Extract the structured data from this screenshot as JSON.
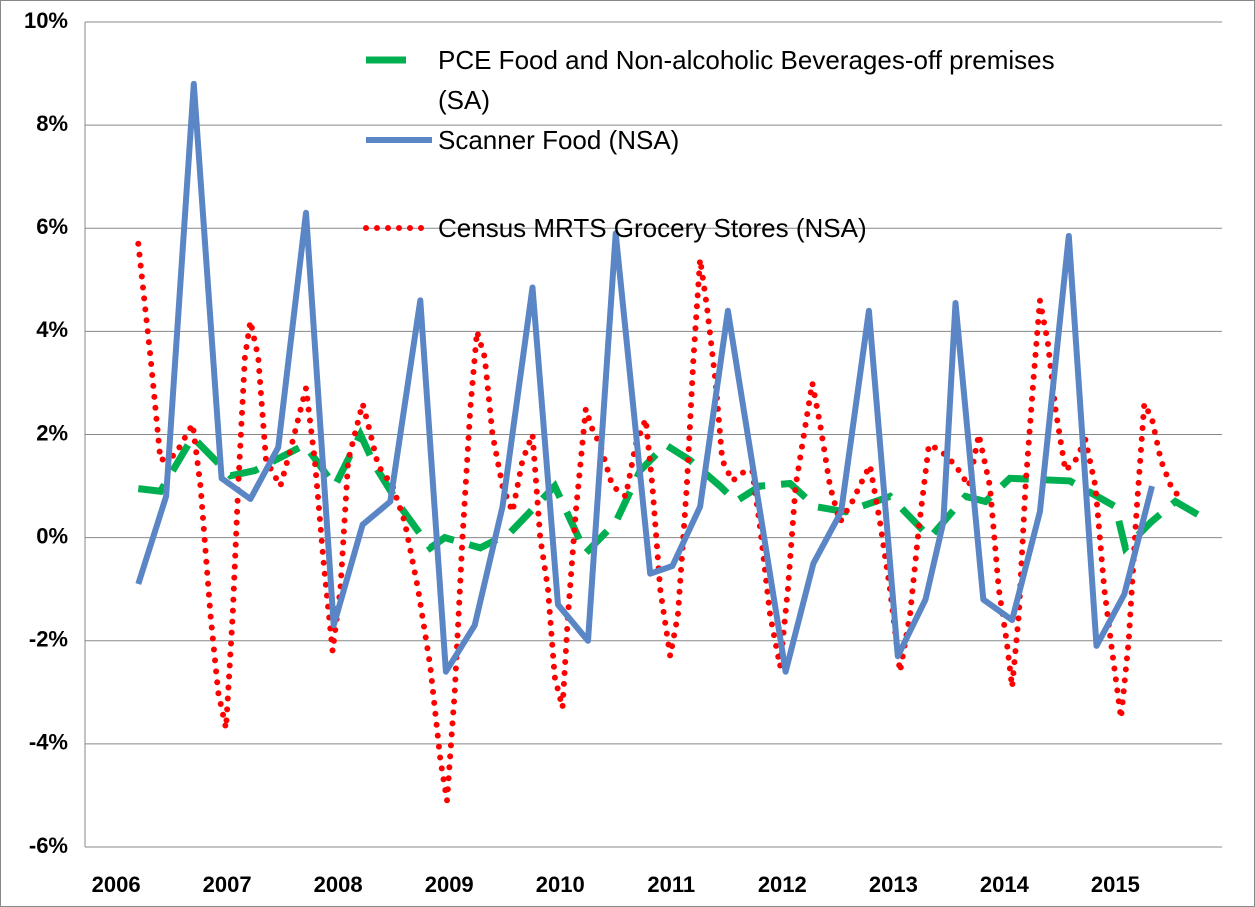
{
  "chart_data": {
    "type": "line",
    "xlim": [
      2005.72,
      2015.96
    ],
    "xticks": [
      2006,
      2007,
      2008,
      2009,
      2010,
      2011,
      2012,
      2013,
      2014,
      2015
    ],
    "ylim": [
      -6,
      10
    ],
    "yticks": [
      {
        "value": -6,
        "label": "-6%"
      },
      {
        "value": -4,
        "label": "-4%"
      },
      {
        "value": -2,
        "label": "-2%"
      },
      {
        "value": 0,
        "label": "0%"
      },
      {
        "value": 2,
        "label": "2%"
      },
      {
        "value": 4,
        "label": "4%"
      },
      {
        "value": 6,
        "label": "6%"
      },
      {
        "value": 8,
        "label": "8%"
      },
      {
        "value": 10,
        "label": "10%"
      }
    ],
    "grid": true,
    "legend": "top",
    "series": [
      {
        "name": "PCE Food and Non-alcoholic Beverages-off premises (SA)",
        "color": "#00b050",
        "style": "dashed",
        "x": [
          2006.2,
          2006.4,
          2006.69,
          2007.03,
          2007.25,
          2007.43,
          2007.7,
          2007.97,
          2008.2,
          2008.33,
          2008.56,
          2008.83,
          2008.96,
          2009.28,
          2009.55,
          2009.95,
          2010.23,
          2010.5,
          2010.72,
          2010.95,
          2011.17,
          2011.44,
          2011.58,
          2011.8,
          2012.07,
          2012.3,
          2012.57,
          2012.97,
          2013.33,
          2013.65,
          2013.83,
          2014.05,
          2014.59,
          2015.0,
          2015.09,
          2015.32,
          2015.54,
          2015.86
        ],
        "values": [
          0.95,
          0.9,
          1.95,
          1.2,
          1.3,
          1.5,
          1.8,
          1.0,
          2.0,
          1.4,
          0.6,
          -0.2,
          0.0,
          -0.2,
          0.1,
          1.0,
          -0.3,
          0.3,
          1.3,
          1.8,
          1.5,
          1.0,
          0.7,
          1.0,
          1.05,
          0.6,
          0.5,
          0.8,
          0.0,
          0.8,
          0.7,
          1.15,
          1.1,
          0.6,
          -0.2,
          0.3,
          0.7,
          0.3
        ]
      },
      {
        "name": "Scanner Food (NSA)",
        "color": "#5b86c5",
        "style": "solid",
        "x": [
          2006.2,
          2006.45,
          2006.7,
          2006.95,
          2007.21,
          2007.46,
          2007.71,
          2007.96,
          2008.22,
          2008.47,
          2008.74,
          2008.97,
          2009.23,
          2009.48,
          2009.75,
          2009.98,
          2010.25,
          2010.5,
          2010.81,
          2011.01,
          2011.26,
          2011.51,
          2012.03,
          2012.28,
          2012.53,
          2012.78,
          2013.04,
          2013.29,
          2013.45,
          2013.56,
          2013.81,
          2014.07,
          2014.32,
          2014.58,
          2014.83,
          2015.08,
          2015.33
        ],
        "values": [
          -0.9,
          0.8,
          8.8,
          1.15,
          0.75,
          1.75,
          6.3,
          -1.7,
          0.25,
          0.7,
          4.6,
          -2.6,
          -1.7,
          0.6,
          4.85,
          -1.3,
          -2.0,
          5.9,
          -0.7,
          -0.55,
          0.6,
          4.4,
          -2.6,
          -0.5,
          0.5,
          4.4,
          -2.3,
          -1.2,
          0.3,
          4.55,
          -1.2,
          -1.6,
          0.5,
          5.85,
          -2.1,
          -1.1,
          1.0
        ]
      },
      {
        "name": "Census MRTS Grocery Stores (NSA)",
        "color": "#ff0000",
        "style": "dotted",
        "x": [
          2006.2,
          2006.31,
          2006.4,
          2006.53,
          2006.69,
          2006.76,
          2006.85,
          2006.92,
          2006.99,
          2007.05,
          2007.1,
          2007.16,
          2007.21,
          2007.28,
          2007.35,
          2007.48,
          2007.57,
          2007.71,
          2007.79,
          2007.87,
          2007.95,
          2008.02,
          2008.09,
          2008.22,
          2008.27,
          2008.36,
          2008.49,
          2008.6,
          2008.72,
          2008.83,
          2008.92,
          2008.98,
          2009.05,
          2009.12,
          2009.19,
          2009.25,
          2009.32,
          2009.39,
          2009.48,
          2009.57,
          2009.66,
          2009.75,
          2009.82,
          2009.89,
          2009.95,
          2010.02,
          2010.07,
          2010.14,
          2010.23,
          2010.29,
          2010.36,
          2010.47,
          2010.59,
          2010.68,
          2010.77,
          2010.83,
          2010.9,
          2010.99,
          2011.06,
          2011.14,
          2011.2,
          2011.26,
          2011.32,
          2011.4,
          2011.46,
          2011.55,
          2011.67,
          2011.73,
          2011.8,
          2011.89,
          2011.98,
          2012.05,
          2012.12,
          2012.21,
          2012.27,
          2012.34,
          2012.43,
          2012.52,
          2012.63,
          2012.72,
          2012.79,
          2012.88,
          2012.97,
          2013.06,
          2013.15,
          2013.23,
          2013.32,
          2013.42,
          2013.56,
          2013.68,
          2013.77,
          2013.87,
          2013.95,
          2014.02,
          2014.07,
          2014.13,
          2014.19,
          2014.26,
          2014.32,
          2014.39,
          2014.46,
          2014.55,
          2014.64,
          2014.73,
          2014.82,
          2014.9,
          2014.97,
          2015.05,
          2015.12,
          2015.19,
          2015.26,
          2015.33,
          2015.41,
          2015.5,
          2015.57
        ],
        "values": [
          5.7,
          3.5,
          1.5,
          1.6,
          2.2,
          1.0,
          -1.5,
          -3.0,
          -3.7,
          -1.5,
          1.0,
          3.5,
          4.2,
          3.5,
          1.5,
          1.0,
          1.7,
          2.9,
          1.5,
          -0.5,
          -2.2,
          -1.0,
          1.5,
          2.6,
          2.2,
          1.4,
          1.0,
          0.3,
          -1.0,
          -2.5,
          -4.3,
          -5.1,
          -3.0,
          0.0,
          2.5,
          4.0,
          3.5,
          2.0,
          1.0,
          0.5,
          1.5,
          2.0,
          0.0,
          -1.0,
          -2.7,
          -3.3,
          -1.5,
          0.5,
          2.5,
          2.1,
          1.8,
          1.0,
          0.8,
          1.8,
          2.3,
          1.0,
          -1.0,
          -2.3,
          -1.5,
          1.0,
          3.5,
          5.4,
          4.5,
          3.0,
          1.5,
          1.1,
          1.3,
          1.3,
          0.2,
          -1.5,
          -2.5,
          -1.0,
          1.0,
          2.2,
          3.0,
          2.2,
          1.0,
          0.3,
          0.7,
          1.1,
          1.4,
          0.3,
          -1.0,
          -2.6,
          -1.5,
          0.2,
          1.8,
          1.7,
          1.4,
          1.0,
          2.0,
          1.0,
          -1.0,
          -2.0,
          -2.9,
          -1.5,
          1.0,
          3.0,
          4.6,
          3.8,
          2.5,
          1.3,
          1.5,
          1.9,
          1.0,
          -1.0,
          -2.2,
          -3.5,
          -2.0,
          0.5,
          2.6,
          2.3,
          1.5,
          1.0,
          0.8
        ]
      }
    ]
  }
}
